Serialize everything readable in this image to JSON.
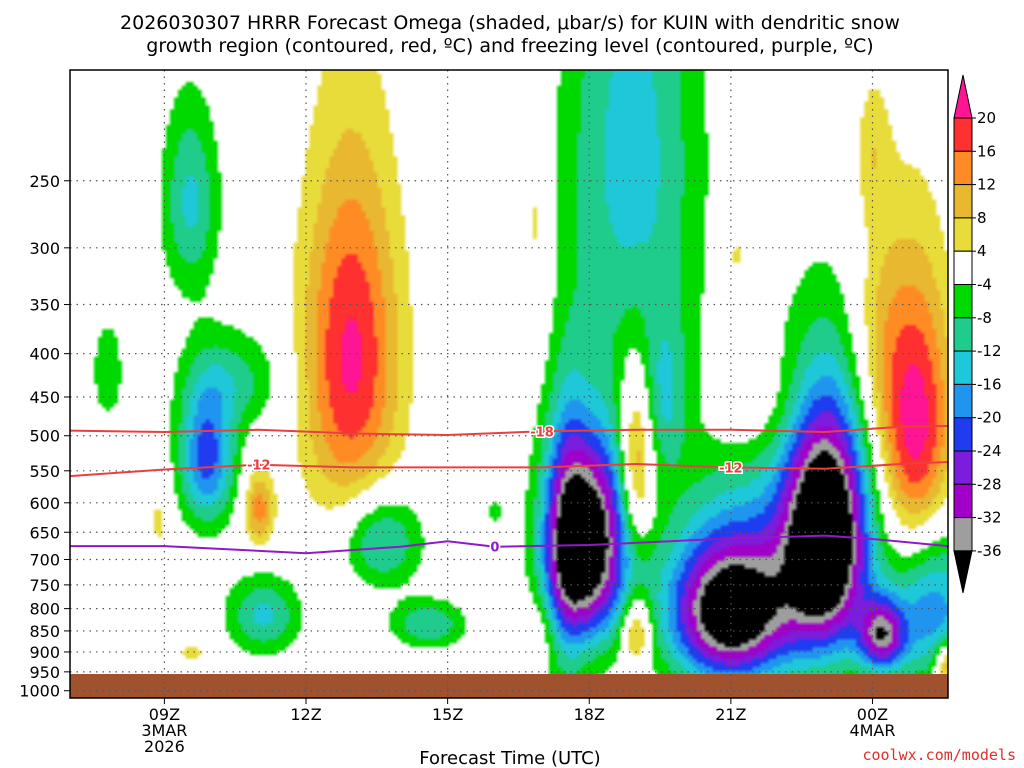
{
  "chart_data": {
    "type": "heatmap",
    "title_line1": "2026030307 HRRR Forecast Omega (shaded, μbar/s) for KUIN with dendritic snow",
    "title_line2": "growth region (contoured, red, ºC) and freezing level (contoured, purple, ºC)",
    "xlabel": "Forecast Time (UTC)",
    "credit": "coolwx.com/models",
    "x_range_hours": [
      7,
      25.6
    ],
    "y_range_hpa": [
      185,
      1020
    ],
    "x_ticks": [
      {
        "h": 9,
        "lines": [
          "09Z",
          "3MAR",
          "2026"
        ]
      },
      {
        "h": 12,
        "lines": [
          "12Z"
        ]
      },
      {
        "h": 15,
        "lines": [
          "15Z"
        ]
      },
      {
        "h": 18,
        "lines": [
          "18Z"
        ]
      },
      {
        "h": 21,
        "lines": [
          "21Z"
        ]
      },
      {
        "h": 24,
        "lines": [
          "00Z",
          "4MAR"
        ]
      }
    ],
    "y_ticks": [
      250,
      300,
      350,
      400,
      450,
      500,
      550,
      600,
      650,
      700,
      750,
      800,
      850,
      900,
      950,
      1000
    ],
    "colorbar": {
      "labels": [
        "20",
        "16",
        "12",
        "8",
        "4",
        "-4",
        "-8",
        "-12",
        "-16",
        "-20",
        "-24",
        "-28",
        "-32",
        "-36"
      ],
      "colors": [
        "#ff1493",
        "#ff3030",
        "#ff8b25",
        "#e8b830",
        "#e8dc3a",
        "#ffffff",
        "#00d900",
        "#1fcc8c",
        "#1ec8d8",
        "#2095f0",
        "#1f3cf0",
        "#7c1cdc",
        "#a000c8",
        "#9e9e9e",
        "#000000"
      ]
    },
    "omega_levels": [
      -36,
      -32,
      -28,
      -24,
      -20,
      -16,
      -12,
      -8,
      -4,
      4,
      8,
      12,
      16,
      20
    ],
    "omega_centers": [
      {
        "t": 9.55,
        "p": 265,
        "v": -13,
        "st": 0.42,
        "sp": 48
      },
      {
        "t": 7.8,
        "p": 420,
        "v": -7,
        "st": 0.25,
        "sp": 45
      },
      {
        "t": 9.9,
        "p": 530,
        "v": -22,
        "st": 0.42,
        "sp": 70
      },
      {
        "t": 10.5,
        "p": 430,
        "v": -9,
        "st": 0.75,
        "sp": 40
      },
      {
        "t": 11.0,
        "p": 610,
        "v": 14,
        "st": 0.22,
        "sp": 45
      },
      {
        "t": 8.9,
        "p": 630,
        "v": 5,
        "st": 0.2,
        "sp": 55
      },
      {
        "t": 11.1,
        "p": 815,
        "v": -13,
        "st": 0.55,
        "sp": 60
      },
      {
        "t": 9.6,
        "p": 900,
        "v": 5,
        "st": 0.3,
        "sp": 22
      },
      {
        "t": 12.95,
        "p": 405,
        "v": 21,
        "st": 0.72,
        "sp": 135
      },
      {
        "t": 13.6,
        "p": 665,
        "v": -14,
        "st": 0.58,
        "sp": 60
      },
      {
        "t": 14.6,
        "p": 835,
        "v": -12,
        "st": 0.55,
        "sp": 38
      },
      {
        "t": 16.0,
        "p": 615,
        "v": -6,
        "st": 0.1,
        "sp": 18
      },
      {
        "t": 16.9,
        "p": 280,
        "v": 6,
        "st": 0.25,
        "sp": 70
      },
      {
        "t": 16.8,
        "p": 850,
        "v": 5,
        "st": 0.6,
        "sp": 55
      },
      {
        "t": 17.95,
        "p": 670,
        "v": -45,
        "st": 0.6,
        "sp": 130
      },
      {
        "t": 17.5,
        "p": 700,
        "v": -12,
        "st": 0.3,
        "sp": 200
      },
      {
        "t": 19.0,
        "p": 540,
        "v": 17,
        "st": 0.25,
        "sp": 90
      },
      {
        "t": 19.0,
        "p": 850,
        "v": 15,
        "st": 0.22,
        "sp": 55
      },
      {
        "t": 18.9,
        "p": 230,
        "v": -14,
        "st": 1.0,
        "sp": 120
      },
      {
        "t": 19.6,
        "p": 450,
        "v": -10,
        "st": 0.35,
        "sp": 70
      },
      {
        "t": 21.1,
        "p": 310,
        "v": 6,
        "st": 0.25,
        "sp": 90
      },
      {
        "t": 21.6,
        "p": 460,
        "v": 6,
        "st": 0.7,
        "sp": 55
      },
      {
        "t": 21.0,
        "p": 810,
        "v": -42,
        "st": 0.9,
        "sp": 110
      },
      {
        "t": 22.0,
        "p": 640,
        "v": -10,
        "st": 1.6,
        "sp": 160
      },
      {
        "t": 23.0,
        "p": 660,
        "v": -46,
        "st": 0.6,
        "sp": 150
      },
      {
        "t": 24.9,
        "p": 490,
        "v": 24,
        "st": 0.55,
        "sp": 130
      },
      {
        "t": 24.1,
        "p": 380,
        "v": 6,
        "st": 0.4,
        "sp": 90
      },
      {
        "t": 24.0,
        "p": 230,
        "v": 6,
        "st": 0.25,
        "sp": 30
      },
      {
        "t": 24.2,
        "p": 860,
        "v": -30,
        "st": 0.35,
        "sp": 60
      },
      {
        "t": 25.3,
        "p": 800,
        "v": -18,
        "st": 0.6,
        "sp": 120
      },
      {
        "t": 25.6,
        "p": 930,
        "v": 18,
        "st": 0.2,
        "sp": 40
      }
    ],
    "contours": [
      {
        "label": "-18",
        "color": "#e84040",
        "label_t": 17.0,
        "points": [
          [
            7.0,
            493
          ],
          [
            9.0,
            495
          ],
          [
            11.0,
            492
          ],
          [
            13.0,
            497
          ],
          [
            15.0,
            499
          ],
          [
            17.0,
            494
          ],
          [
            19.0,
            492
          ],
          [
            21.0,
            492
          ],
          [
            23.0,
            495
          ],
          [
            24.6,
            488
          ],
          [
            25.6,
            487
          ]
        ]
      },
      {
        "label": "-12",
        "color": "#e84040",
        "label_t": 11.0,
        "points": [
          [
            7.0,
            558
          ],
          [
            9.0,
            548
          ],
          [
            11.0,
            541
          ],
          [
            13.0,
            545
          ],
          [
            15.0,
            545
          ],
          [
            17.0,
            545
          ],
          [
            19.0,
            540
          ],
          [
            20.2,
            543
          ],
          [
            21.0,
            545
          ],
          [
            23.0,
            547
          ],
          [
            24.6,
            540
          ],
          [
            25.6,
            537
          ]
        ]
      },
      {
        "label": "-12",
        "color": "#e84040",
        "label_t": 21.0,
        "points": []
      },
      {
        "label": "0",
        "color": "#9019c8",
        "label_t": 16.0,
        "points": [
          [
            7.0,
            675
          ],
          [
            9.0,
            675
          ],
          [
            12.0,
            688
          ],
          [
            14.0,
            676
          ],
          [
            15.0,
            666
          ],
          [
            16.0,
            676
          ],
          [
            18.0,
            673
          ],
          [
            21.0,
            661
          ],
          [
            23.0,
            656
          ],
          [
            24.0,
            662
          ],
          [
            25.6,
            675
          ]
        ]
      }
    ]
  }
}
